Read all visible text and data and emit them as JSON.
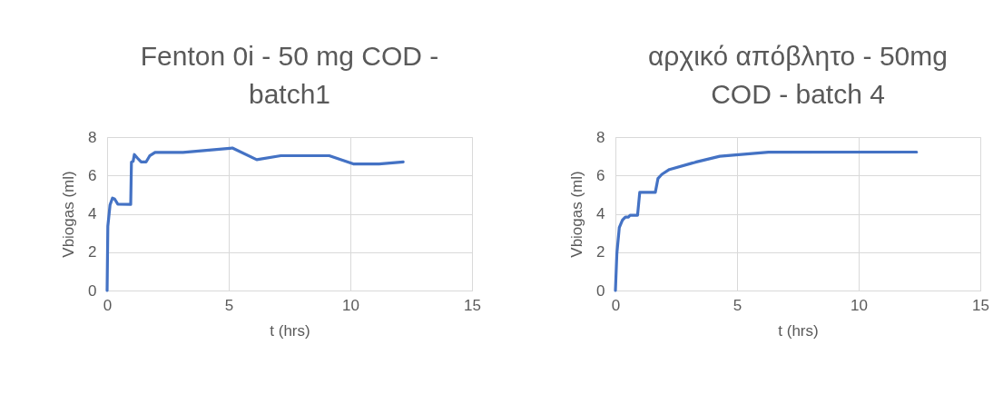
{
  "chart_data": [
    {
      "type": "line",
      "title": "Fenton 0i - 50 mg COD - batch1",
      "xlabel": "t (hrs)",
      "ylabel": "Vbiogas (ml)",
      "series": [
        {
          "color": "#4472c4",
          "x": [
            0,
            0.03,
            0.12,
            0.22,
            0.31,
            0.44,
            0.97,
            1.0,
            1.07,
            1.12,
            1.25,
            1.4,
            1.6,
            1.75,
            1.97,
            3.12,
            5.15,
            6.15,
            7.14,
            9.13,
            10.12,
            11.18,
            12.17
          ],
          "values": [
            0,
            3.35,
            4.46,
            4.82,
            4.77,
            4.5,
            4.49,
            6.69,
            6.74,
            7.09,
            6.9,
            6.7,
            6.7,
            7.02,
            7.2,
            7.2,
            7.43,
            6.82,
            7.03,
            7.03,
            6.6,
            6.6,
            6.7
          ]
        }
      ],
      "xlim": [
        0,
        15
      ],
      "xticks": [
        0,
        5,
        10,
        15
      ],
      "ylim": [
        0,
        8
      ],
      "yticks": [
        0,
        2,
        4,
        6,
        8
      ],
      "grid": true,
      "line_style": "solid"
    },
    {
      "type": "line",
      "title": "αρχικό απόβλητο - 50mg COD - batch 4",
      "xlabel": "t (hrs)",
      "ylabel": "Vbiogas (ml)",
      "series": [
        {
          "color": "#4472c4",
          "x": [
            0,
            0.06,
            0.16,
            0.29,
            0.41,
            0.54,
            0.6,
            0.91,
            1.0,
            1.64,
            1.75,
            1.91,
            2.22,
            3.29,
            4.29,
            6.29,
            12.38
          ],
          "values": [
            0,
            1.94,
            3.28,
            3.67,
            3.83,
            3.83,
            3.92,
            3.92,
            5.12,
            5.12,
            5.84,
            6.06,
            6.31,
            6.69,
            7.0,
            7.21,
            7.22
          ]
        }
      ],
      "xlim": [
        0,
        15
      ],
      "xticks": [
        0,
        5,
        10,
        15
      ],
      "ylim": [
        0,
        8
      ],
      "yticks": [
        0,
        2,
        4,
        6,
        8
      ],
      "grid": true,
      "line_style": "solid"
    }
  ]
}
